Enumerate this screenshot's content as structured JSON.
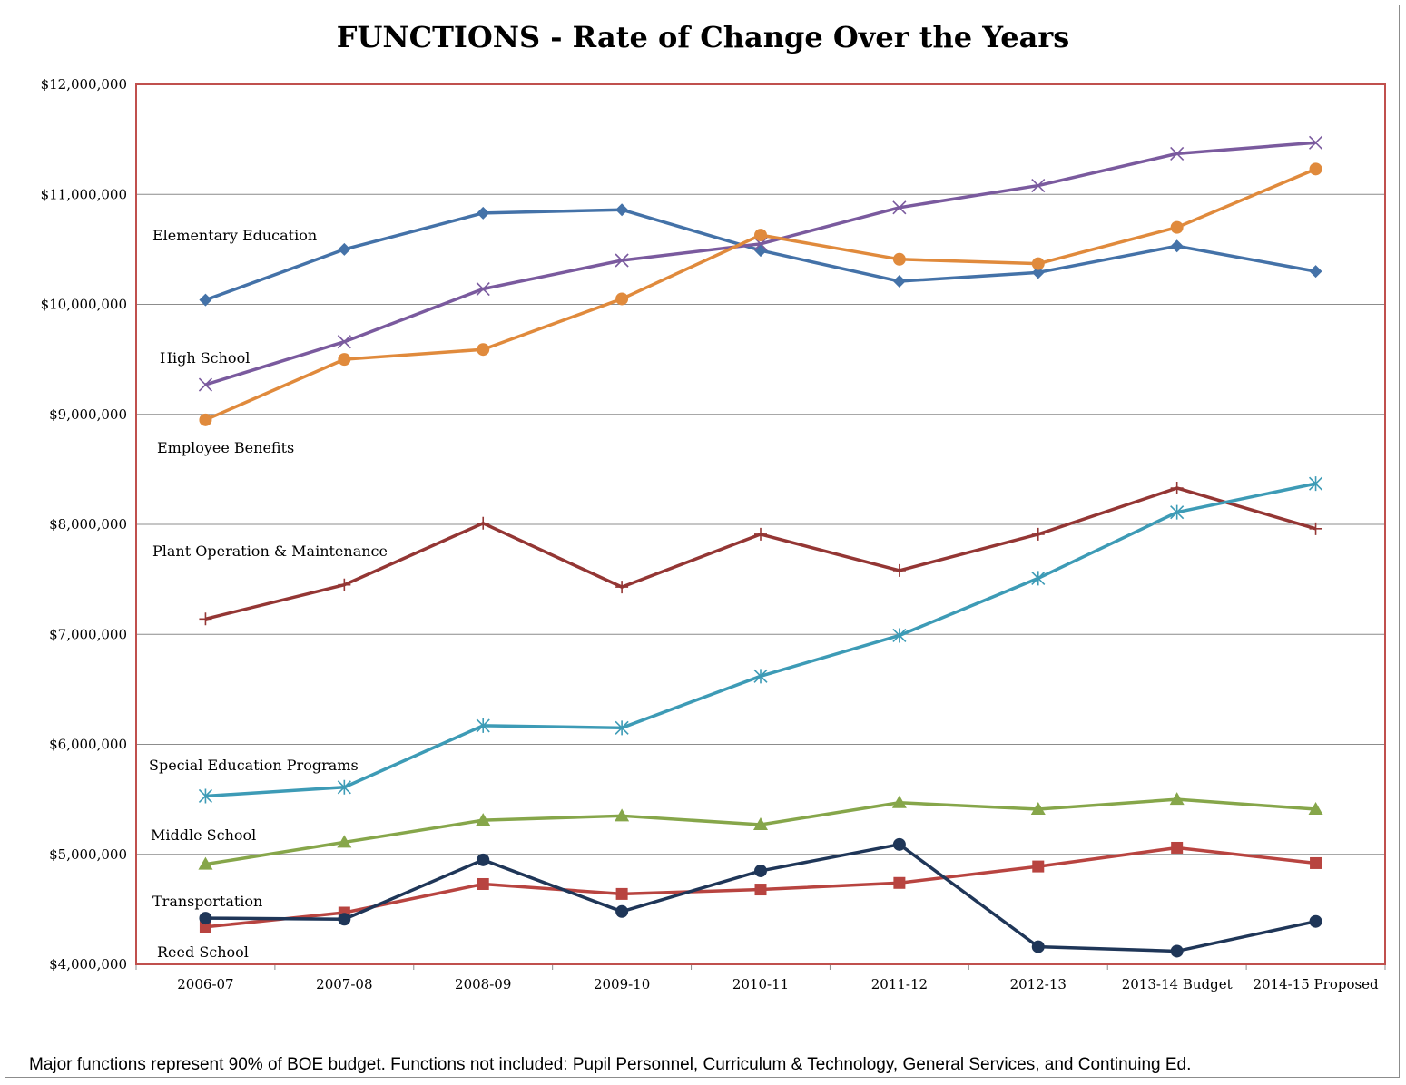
{
  "title": "FUNCTIONS - Rate of Change Over the Years",
  "footnote": "Major functions represent 90% of BOE budget. Functions not included: Pupil Personnel, Curriculum & Technology, General Services, and Continuing Ed.",
  "chart_data": {
    "type": "line",
    "title": "FUNCTIONS - Rate of Change Over the Years",
    "xlabel": "",
    "ylabel": "",
    "categories": [
      "2006-07",
      "2007-08",
      "2008-09",
      "2009-10",
      "2010-11",
      "2011-12",
      "2012-13",
      "2013-14 Budget",
      "2014-15 Proposed"
    ],
    "ylim": [
      4000000,
      12000000
    ],
    "yticks": [
      4000000,
      5000000,
      6000000,
      7000000,
      8000000,
      9000000,
      10000000,
      11000000,
      12000000
    ],
    "ytick_labels": [
      "$4,000,000",
      "$5,000,000",
      "$6,000,000",
      "$7,000,000",
      "$8,000,000",
      "$9,000,000",
      "$10,000,000",
      "$11,000,000",
      "$12,000,000"
    ],
    "grid": true,
    "legend": "none (series labeled inline at left)",
    "plot_border_color": "#c0504d",
    "series": [
      {
        "name": "Elementary Education",
        "color": "#4472a8",
        "marker": "diamond",
        "values": [
          10040000,
          10500000,
          10830000,
          10860000,
          10490000,
          10210000,
          10290000,
          10530000,
          10300000
        ]
      },
      {
        "name": "High School",
        "color": "#7a5a9e",
        "marker": "x",
        "values": [
          9270000,
          9660000,
          10140000,
          10400000,
          10550000,
          10880000,
          11080000,
          11370000,
          11470000
        ]
      },
      {
        "name": "Employee Benefits",
        "color": "#e08a3c",
        "marker": "circle",
        "values": [
          8950000,
          9500000,
          9590000,
          10050000,
          10630000,
          10410000,
          10370000,
          10700000,
          11230000
        ]
      },
      {
        "name": "Plant Operation & Maintenance",
        "color": "#943634",
        "marker": "plus",
        "values": [
          7140000,
          7450000,
          8010000,
          7430000,
          7910000,
          7580000,
          7910000,
          8330000,
          7960000
        ]
      },
      {
        "name": "Special Education Programs",
        "color": "#3d9bb6",
        "marker": "star",
        "values": [
          5530000,
          5610000,
          6170000,
          6150000,
          6620000,
          6990000,
          7510000,
          8110000,
          8370000
        ]
      },
      {
        "name": "Middle School",
        "color": "#86a64a",
        "marker": "triangle",
        "values": [
          4910000,
          5110000,
          5310000,
          5350000,
          5270000,
          5470000,
          5410000,
          5500000,
          5410000
        ]
      },
      {
        "name": "Transportation",
        "color": "#b84440",
        "marker": "square",
        "values": [
          4340000,
          4470000,
          4730000,
          4640000,
          4680000,
          4740000,
          4890000,
          5060000,
          4920000
        ]
      },
      {
        "name": "Reed School",
        "color": "#1f3658",
        "marker": "circle",
        "values": [
          4420000,
          4410000,
          4950000,
          4480000,
          4850000,
          5090000,
          4160000,
          4120000,
          4390000
        ]
      }
    ]
  }
}
